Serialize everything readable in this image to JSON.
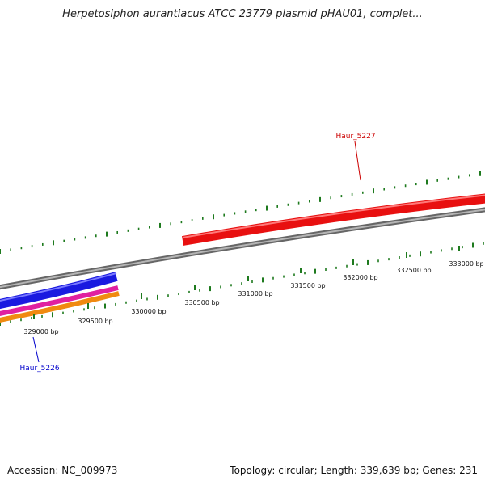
{
  "title": "Herpetosiphon aurantiacus ATCC 23779 plasmid pHAU01, complet...",
  "footer": {
    "accession": "Accession: NC_009973",
    "summary": "Topology: circular; Length: 339,639 bp; Genes: 231"
  },
  "colors": {
    "backbone": "#8a8a8a",
    "ticks": "#1e7a1e",
    "gene_red": "#e81010",
    "gene_blue": "#1a1ae0",
    "gene_magenta": "#e020a0",
    "gene_orange": "#f08a10",
    "label_red": "#cc0000",
    "label_blue": "#0000cc"
  },
  "ticks": [
    {
      "label": "329000 bp"
    },
    {
      "label": "329500 bp"
    },
    {
      "label": "330000 bp"
    },
    {
      "label": "330500 bp"
    },
    {
      "label": "331000 bp"
    },
    {
      "label": "331500 bp"
    },
    {
      "label": "332000 bp"
    },
    {
      "label": "332500 bp"
    },
    {
      "label": "333000 bp"
    }
  ],
  "genes": [
    {
      "name": "Haur_5227",
      "color_key": "gene_red"
    },
    {
      "name": "Haur_5226",
      "color_key": "gene_blue"
    }
  ]
}
